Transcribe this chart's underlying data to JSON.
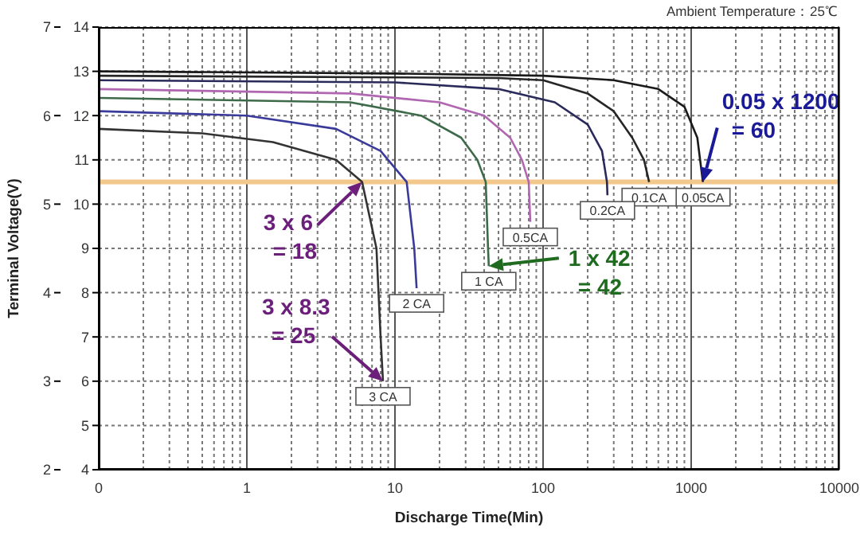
{
  "chart_data": {
    "type": "line",
    "xlabel": "Discharge Time(Min)",
    "y2label": "Terminal Voltage(V)",
    "log": "x",
    "xlim": [
      0.1,
      10000
    ],
    "xticks": [
      {
        "value": 0.1,
        "label": "0"
      },
      1,
      10,
      100,
      1000,
      10000
    ],
    "ylim": [
      4,
      14
    ],
    "yticks": [
      4,
      5,
      6,
      7,
      8,
      9,
      10,
      11,
      12,
      13,
      14
    ],
    "y2lim": [
      2,
      7
    ],
    "y2ticks": [
      2,
      3,
      4,
      5,
      6,
      7
    ],
    "grid": true,
    "marker": "none",
    "line_style": "solid",
    "series": [
      {
        "name": "0.05CA",
        "color": "#1a1a1a",
        "x": [
          0.1,
          10,
          100,
          300,
          600,
          900,
          1100,
          1200
        ],
        "values": [
          13.0,
          12.95,
          12.9,
          12.8,
          12.6,
          12.2,
          11.5,
          10.5
        ]
      },
      {
        "name": "0.1CA",
        "color": "#262626",
        "x": [
          0.1,
          50,
          100,
          200,
          300,
          400,
          480,
          520
        ],
        "values": [
          12.9,
          12.85,
          12.8,
          12.5,
          12.1,
          11.5,
          11.0,
          10.5
        ]
      },
      {
        "name": "0.2CA",
        "color": "#2a2a5a",
        "x": [
          0.1,
          10,
          50,
          120,
          200,
          250,
          270,
          272
        ],
        "values": [
          12.8,
          12.75,
          12.6,
          12.3,
          11.8,
          11.2,
          10.5,
          10.2
        ]
      },
      {
        "name": "0.5CA",
        "color": "#b066b0",
        "x": [
          0.1,
          5,
          20,
          40,
          60,
          72,
          80,
          82
        ],
        "values": [
          12.6,
          12.5,
          12.3,
          12.0,
          11.5,
          11.0,
          10.5,
          9.6
        ]
      },
      {
        "name": "1 CA",
        "color": "#3d6b4a",
        "x": [
          0.1,
          5,
          15,
          28,
          36,
          41,
          42.5,
          43
        ],
        "values": [
          12.4,
          12.3,
          12.0,
          11.5,
          11.0,
          10.5,
          9.0,
          8.6
        ]
      },
      {
        "name": "2 CA",
        "color": "#3a3a9a",
        "x": [
          0.1,
          1,
          4,
          8,
          12,
          13.5,
          14
        ],
        "values": [
          12.1,
          12.0,
          11.7,
          11.2,
          10.5,
          9.0,
          8.1
        ]
      },
      {
        "name": "3 CA",
        "color": "#333333",
        "x": [
          0.1,
          0.5,
          1.5,
          4,
          6,
          7.5,
          8,
          8.3
        ],
        "values": [
          11.7,
          11.6,
          11.4,
          11.0,
          10.5,
          9.0,
          7.0,
          6.0
        ]
      }
    ],
    "ref_lines": [
      {
        "axis": "y",
        "value": 10.5,
        "color": "#f2c88c"
      }
    ],
    "annotations": [
      "Ambient Temperature：25℃",
      {
        "text": "0.05 x 1200 = 60",
        "x": 1200,
        "y": 10.5
      },
      {
        "text": "3 x 6 = 18",
        "x": 6,
        "y": 10.5
      },
      {
        "text": "3 x 8.3 = 25",
        "x": 8.3,
        "y": 6
      },
      {
        "text": "1 x 42 = 42",
        "x": 43,
        "y": 8.6
      }
    ]
  }
}
